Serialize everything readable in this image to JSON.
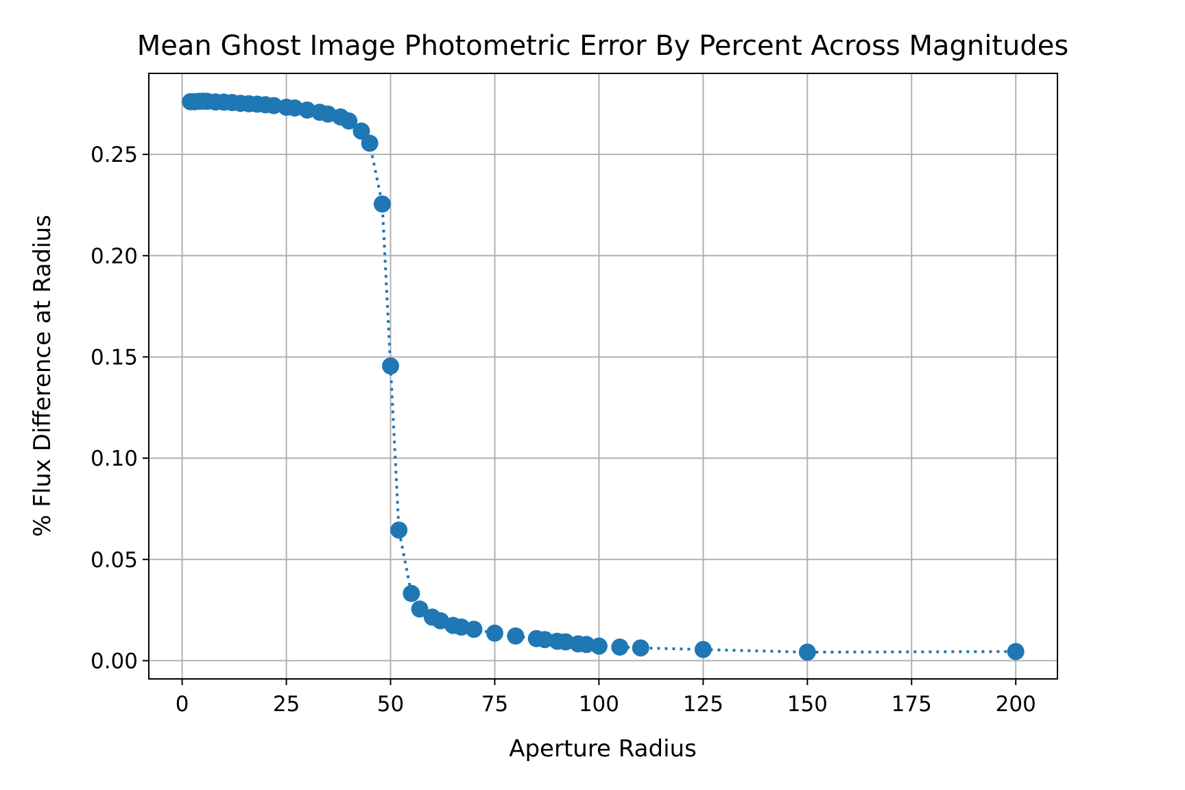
{
  "chart_data": {
    "type": "line",
    "title": "Mean Ghost Image Photometric Error By Percent Across Magnitudes",
    "xlabel": "Aperture Radius",
    "ylabel": "% Flux Difference at Radius",
    "xlim": [
      -8,
      210
    ],
    "ylim": [
      -0.009,
      0.29
    ],
    "xticks": [
      "0",
      "25",
      "50",
      "75",
      "100",
      "125",
      "150",
      "175",
      "200"
    ],
    "yticks": [
      "0.00",
      "0.05",
      "0.10",
      "0.15",
      "0.20",
      "0.25"
    ],
    "grid": true,
    "series": [
      {
        "color": "#1f77b4",
        "line_style": "dotted",
        "marker": "circle",
        "x": [
          2,
          3,
          4,
          5,
          6,
          8,
          10,
          12,
          14,
          16,
          18,
          20,
          22,
          25,
          27,
          30,
          33,
          35,
          38,
          40,
          43,
          45,
          48,
          50,
          52,
          55,
          57,
          60,
          62,
          65,
          67,
          70,
          75,
          80,
          85,
          87,
          90,
          92,
          95,
          97,
          100,
          105,
          110,
          125,
          150,
          200
        ],
        "y": [
          0.276,
          0.276,
          0.2762,
          0.2763,
          0.2762,
          0.2759,
          0.2758,
          0.2756,
          0.2752,
          0.275,
          0.2748,
          0.2745,
          0.2741,
          0.2733,
          0.2729,
          0.2719,
          0.2708,
          0.2699,
          0.2685,
          0.2665,
          0.2615,
          0.2555,
          0.2255,
          0.1455,
          0.0645,
          0.0332,
          0.0255,
          0.0215,
          0.0197,
          0.0174,
          0.0166,
          0.0155,
          0.0136,
          0.0122,
          0.0109,
          0.0104,
          0.0096,
          0.0093,
          0.0083,
          0.008,
          0.0072,
          0.0067,
          0.0063,
          0.0055,
          0.0042,
          0.0045
        ]
      }
    ]
  }
}
